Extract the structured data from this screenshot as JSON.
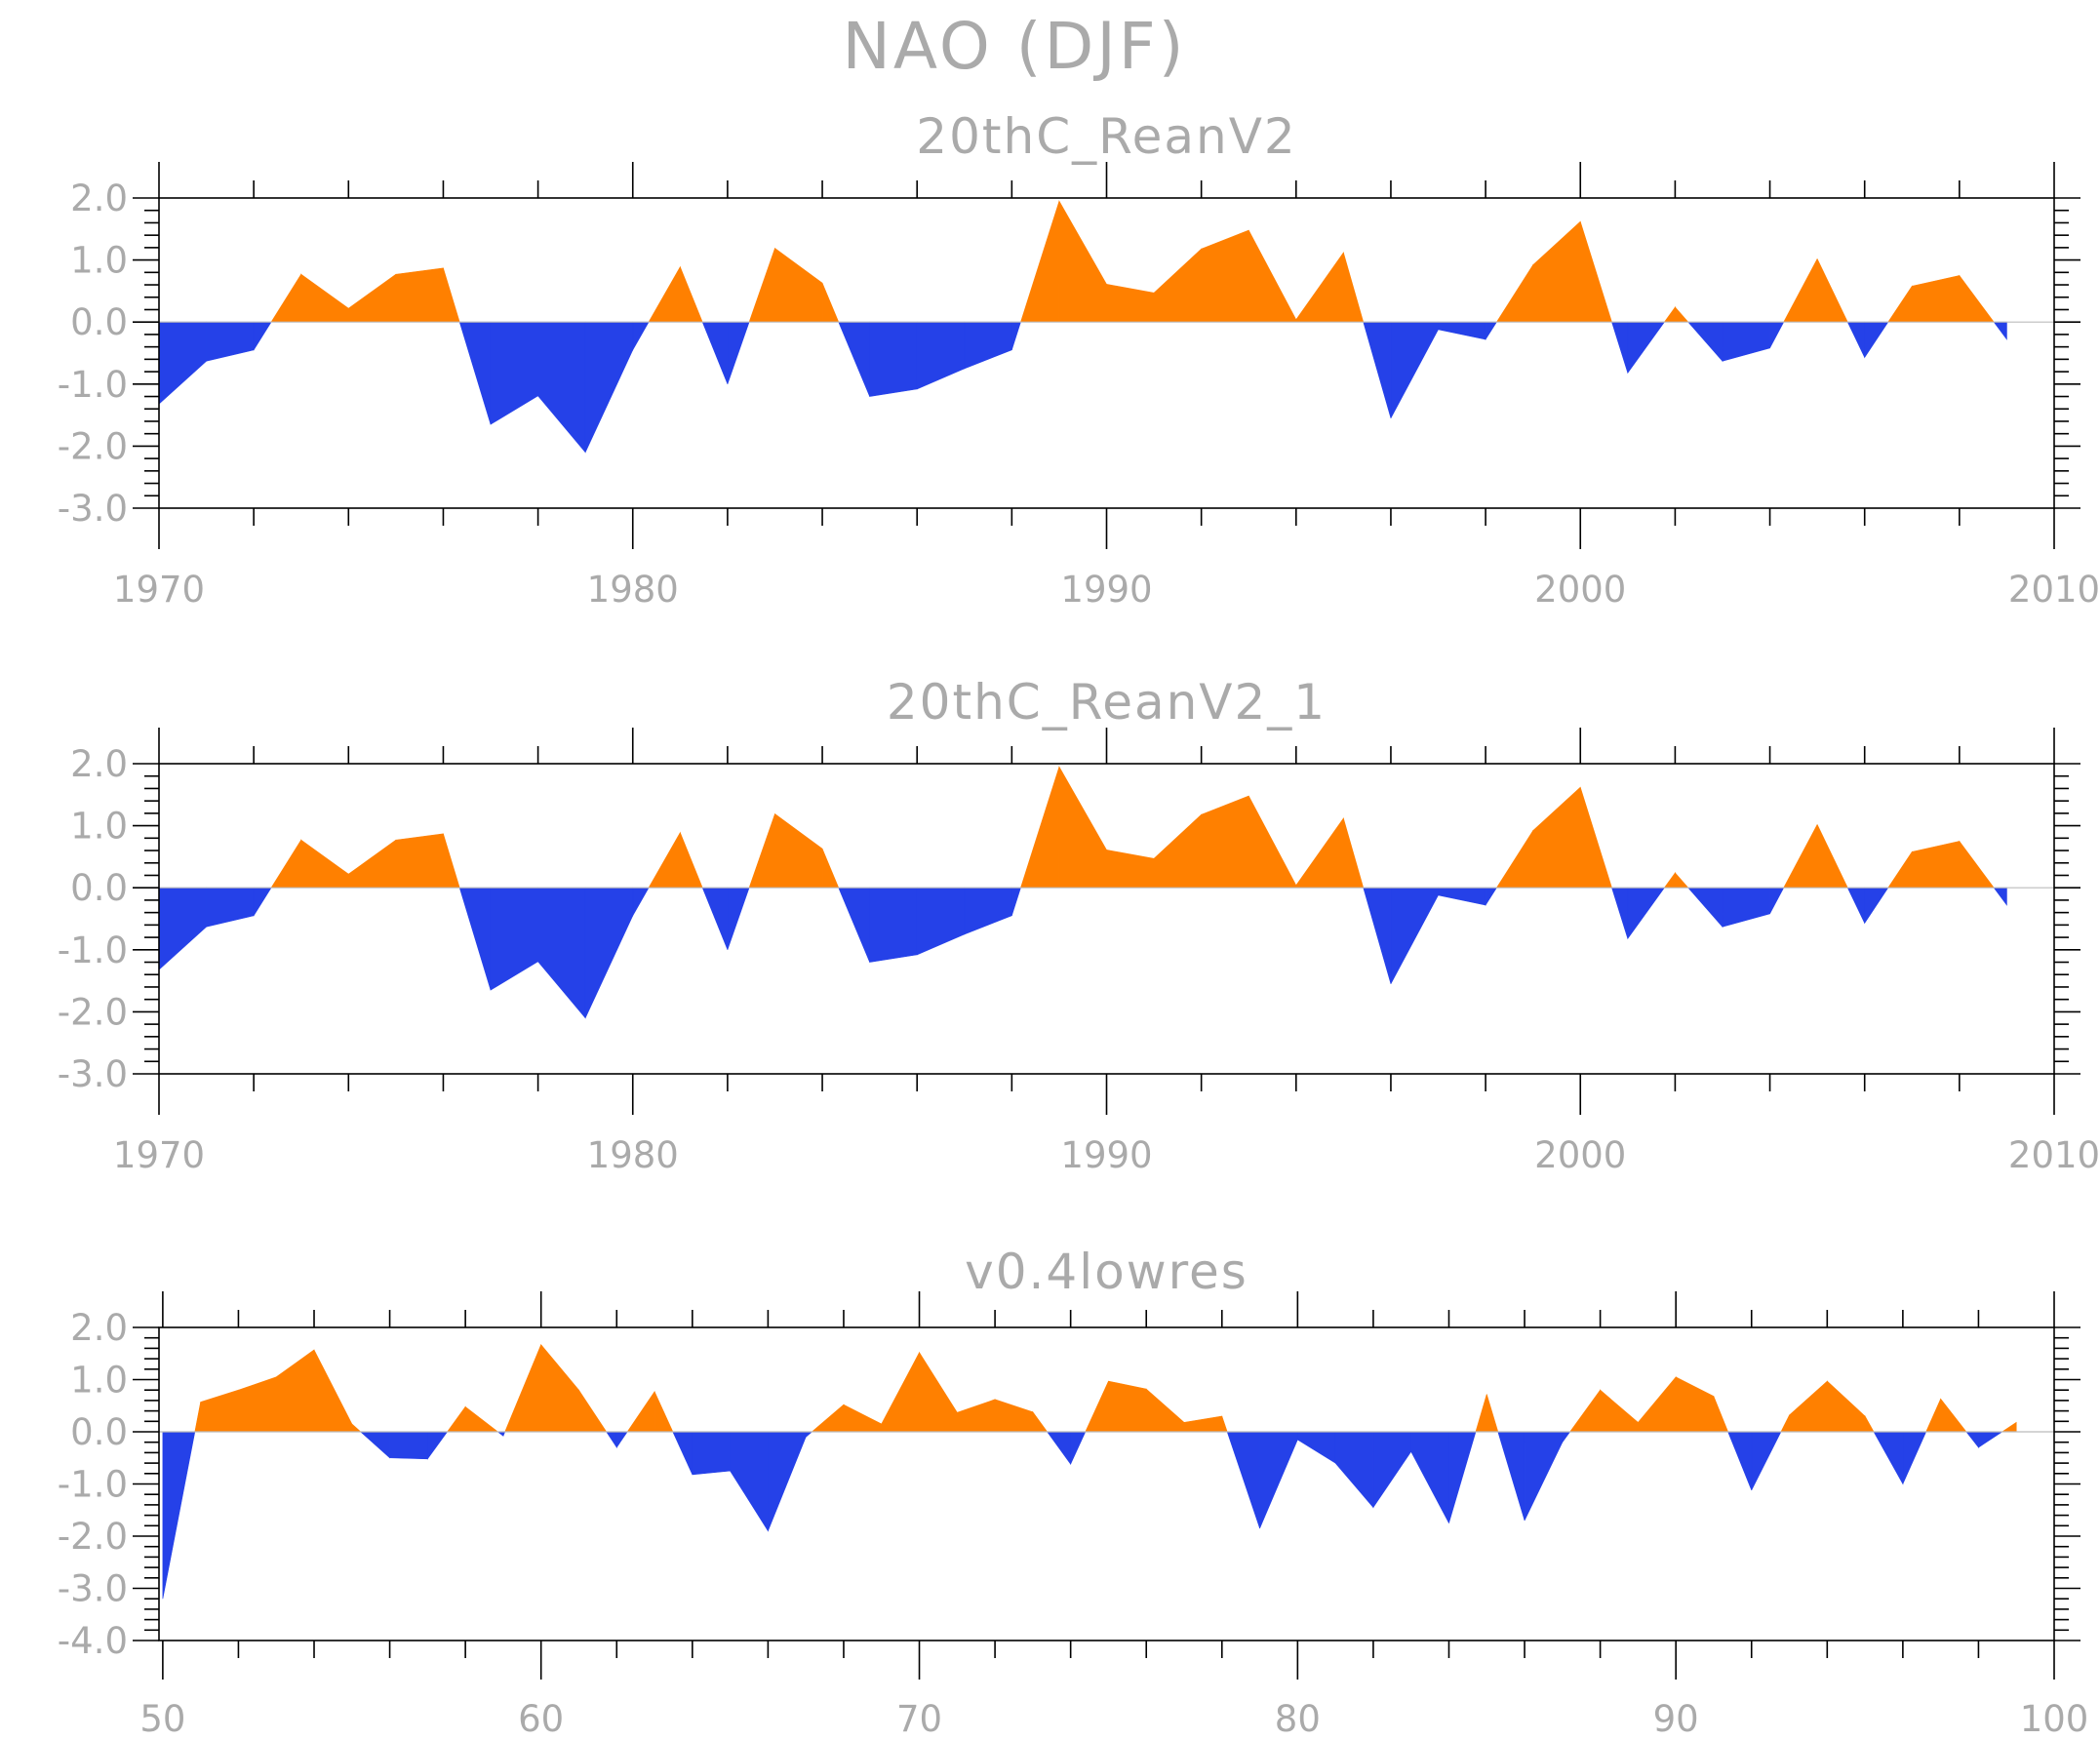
{
  "title": "NAO (DJF)",
  "colors": {
    "positive": "#ff8000",
    "negative": "#2541e8",
    "text": "#aaaaaa",
    "axis": "#000000"
  },
  "chart_data": [
    {
      "type": "area",
      "title": "20thC_ReanV2",
      "xlim": [
        1970,
        2010
      ],
      "ylim": [
        -3.0,
        2.0
      ],
      "xticks": [
        1970,
        1980,
        1990,
        2000,
        2010
      ],
      "xtick_labels": [
        "1970",
        "1980",
        "1990",
        "2000",
        "2010"
      ],
      "yticks": [
        2.0,
        1.0,
        0.0,
        -1.0,
        -2.0,
        -3.0
      ],
      "ytick_labels": [
        "2.0",
        "1.0",
        "0.0",
        "-1.0",
        "-2.0",
        "-3.0"
      ],
      "x": [
        1970,
        1971,
        1972,
        1973,
        1974,
        1975,
        1976,
        1977,
        1978,
        1979,
        1980,
        1981,
        1982,
        1983,
        1984,
        1985,
        1986,
        1987,
        1988,
        1989,
        1990,
        1991,
        1992,
        1993,
        1994,
        1995,
        1996,
        1997,
        1998,
        1999,
        2000,
        2001,
        2002,
        2003,
        2004,
        2005,
        2006,
        2007,
        2008,
        2009
      ],
      "values": [
        -1.32,
        -0.63,
        -0.45,
        0.77,
        0.22,
        0.77,
        0.87,
        -1.65,
        -1.19,
        -2.1,
        -0.45,
        0.89,
        -1.0,
        1.19,
        0.63,
        -1.2,
        -1.08,
        -0.75,
        -0.45,
        1.95,
        0.61,
        0.47,
        1.18,
        1.48,
        0.04,
        1.12,
        -1.55,
        -0.12,
        -0.28,
        0.92,
        1.62,
        -0.82,
        0.24,
        -0.63,
        -0.42,
        1.02,
        -0.57,
        0.58,
        0.75,
        -0.28
      ]
    },
    {
      "type": "area",
      "title": "20thC_ReanV2_1",
      "xlim": [
        1970,
        2010
      ],
      "ylim": [
        -3.0,
        2.0
      ],
      "xticks": [
        1970,
        1980,
        1990,
        2000,
        2010
      ],
      "xtick_labels": [
        "1970",
        "1980",
        "1990",
        "2000",
        "2010"
      ],
      "yticks": [
        2.0,
        1.0,
        0.0,
        -1.0,
        -2.0,
        -3.0
      ],
      "ytick_labels": [
        "2.0",
        "1.0",
        "0.0",
        "-1.0",
        "-2.0",
        "-3.0"
      ],
      "x": [
        1970,
        1971,
        1972,
        1973,
        1974,
        1975,
        1976,
        1977,
        1978,
        1979,
        1980,
        1981,
        1982,
        1983,
        1984,
        1985,
        1986,
        1987,
        1988,
        1989,
        1990,
        1991,
        1992,
        1993,
        1994,
        1995,
        1996,
        1997,
        1998,
        1999,
        2000,
        2001,
        2002,
        2003,
        2004,
        2005,
        2006,
        2007,
        2008,
        2009
      ],
      "values": [
        -1.32,
        -0.63,
        -0.45,
        0.77,
        0.22,
        0.77,
        0.87,
        -1.65,
        -1.19,
        -2.1,
        -0.45,
        0.89,
        -1.0,
        1.19,
        0.63,
        -1.2,
        -1.08,
        -0.75,
        -0.45,
        1.95,
        0.61,
        0.47,
        1.18,
        1.48,
        0.04,
        1.12,
        -1.55,
        -0.12,
        -0.28,
        0.92,
        1.62,
        -0.82,
        0.24,
        -0.63,
        -0.42,
        1.02,
        -0.57,
        0.58,
        0.75,
        -0.28
      ]
    },
    {
      "type": "area",
      "title": "v0.4lowres",
      "xlim": [
        49.9,
        100
      ],
      "ylim": [
        -4.0,
        2.0
      ],
      "xticks": [
        50,
        60,
        70,
        80,
        90,
        100
      ],
      "xtick_labels": [
        "50",
        "60",
        "70",
        "80",
        "90",
        "100"
      ],
      "yticks": [
        2.0,
        1.0,
        0.0,
        -1.0,
        -2.0,
        -3.0,
        -4.0
      ],
      "ytick_labels": [
        "2.0",
        "1.0",
        "0.0",
        "-1.0",
        "-2.0",
        "-3.0",
        "-4.0"
      ],
      "x": [
        50,
        51,
        52,
        53,
        54,
        55,
        56,
        57,
        58,
        59,
        60,
        61,
        62,
        63,
        64,
        65,
        66,
        67,
        68,
        69,
        70,
        71,
        72,
        73,
        74,
        75,
        76,
        77,
        78,
        79,
        80,
        81,
        82,
        83,
        84,
        85,
        86,
        87,
        88,
        89,
        90,
        91,
        92,
        93,
        94,
        95,
        96,
        97,
        98,
        99
      ],
      "values": [
        -3.2,
        0.57,
        0.8,
        1.05,
        1.57,
        0.15,
        -0.5,
        -0.52,
        0.48,
        -0.08,
        1.67,
        0.8,
        -0.3,
        0.77,
        -0.82,
        -0.75,
        -1.9,
        -0.1,
        0.52,
        0.15,
        1.52,
        0.37,
        0.62,
        0.38,
        -0.62,
        0.97,
        0.82,
        0.18,
        0.3,
        -1.85,
        -0.15,
        -0.6,
        -1.45,
        -0.38,
        -1.75,
        0.72,
        -1.7,
        -0.2,
        0.8,
        0.18,
        1.05,
        0.68,
        -1.12,
        0.32,
        0.97,
        0.3,
        -1.0,
        0.63,
        -0.3,
        0.18
      ]
    }
  ]
}
